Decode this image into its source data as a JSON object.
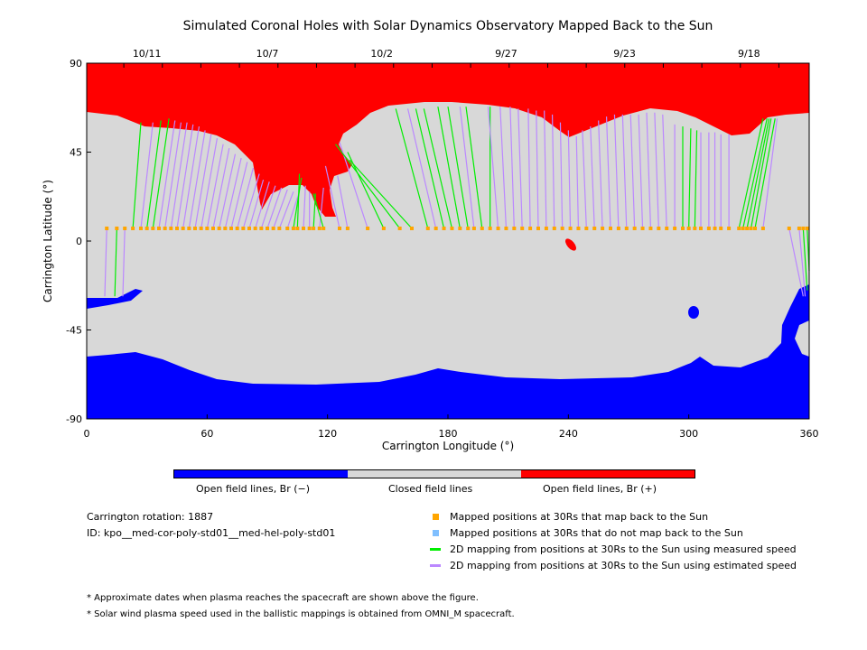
{
  "chart_data": {
    "type": "map",
    "title": "Simulated Coronal Holes with Solar Dynamics Observatory Mapped Back to the Sun",
    "xlabel": "Carrington Longitude (°)",
    "ylabel": "Carrington Latitude (°)",
    "xlim": [
      0,
      360
    ],
    "ylim": [
      -90,
      90
    ],
    "xticks": [
      "0",
      "60",
      "120",
      "180",
      "240",
      "300",
      "360"
    ],
    "yticks": [
      "90",
      "45",
      "0",
      "-45",
      "-90"
    ],
    "top_dates": [
      {
        "label": "10/11",
        "lon": 30
      },
      {
        "label": "10/7",
        "lon": 90
      },
      {
        "label": "10/2",
        "lon": 147
      },
      {
        "label": "9/27",
        "lon": 209
      },
      {
        "label": "9/23",
        "lon": 268
      },
      {
        "label": "9/18",
        "lon": 330
      }
    ],
    "mapping_lat_30rs": 6.4,
    "mappings_columns": [
      "lon_30Rs",
      "lon_sun",
      "lat_sun",
      "type"
    ],
    "mappings": [
      [
        10,
        9,
        -28,
        "e"
      ],
      [
        15,
        14,
        -28,
        "m"
      ],
      [
        19,
        18,
        -28,
        "e"
      ],
      [
        23,
        27,
        60,
        "m"
      ],
      [
        27,
        33,
        60,
        "e"
      ],
      [
        30,
        37,
        61,
        "m"
      ],
      [
        33,
        41,
        62,
        "m"
      ],
      [
        36,
        44,
        61,
        "e"
      ],
      [
        39,
        47,
        60,
        "e"
      ],
      [
        42,
        50,
        60,
        "e"
      ],
      [
        45,
        53,
        59,
        "e"
      ],
      [
        48,
        56,
        58,
        "e"
      ],
      [
        51,
        59,
        56,
        "e"
      ],
      [
        54,
        62,
        54,
        "e"
      ],
      [
        57,
        65,
        52,
        "e"
      ],
      [
        60,
        68,
        49,
        "e"
      ],
      [
        63,
        71,
        47,
        "e"
      ],
      [
        66,
        74,
        44,
        "e"
      ],
      [
        69,
        77,
        42,
        "e"
      ],
      [
        72,
        80,
        40,
        "e"
      ],
      [
        75,
        83,
        37,
        "e"
      ],
      [
        78,
        86,
        34,
        "e"
      ],
      [
        81,
        88,
        31,
        "e"
      ],
      [
        84,
        91,
        30,
        "e"
      ],
      [
        87,
        94,
        28,
        "e"
      ],
      [
        90,
        97,
        27,
        "e"
      ],
      [
        93,
        100,
        26,
        "e"
      ],
      [
        96,
        103,
        25,
        "e"
      ],
      [
        100,
        106,
        25,
        "e"
      ],
      [
        103,
        107,
        32,
        "m"
      ],
      [
        105,
        106,
        34,
        "m"
      ],
      [
        108,
        109,
        28,
        "e"
      ],
      [
        111,
        111,
        25,
        "e"
      ],
      [
        113,
        114,
        24,
        "m"
      ],
      [
        116,
        118,
        27,
        "e"
      ],
      [
        118,
        113,
        24,
        "m"
      ],
      [
        126,
        119,
        38,
        "e"
      ],
      [
        130,
        125,
        33,
        "e"
      ],
      [
        140,
        126,
        50,
        "e"
      ],
      [
        148,
        130,
        45,
        "m"
      ],
      [
        156,
        124,
        49,
        "m"
      ],
      [
        162,
        131,
        41,
        "m"
      ],
      [
        170,
        154,
        67,
        "m"
      ],
      [
        174,
        160,
        67,
        "e"
      ],
      [
        178,
        164,
        67,
        "m"
      ],
      [
        182,
        168,
        67,
        "m"
      ],
      [
        186,
        175,
        68,
        "m"
      ],
      [
        190,
        180,
        68,
        "m"
      ],
      [
        193,
        186,
        68,
        "e"
      ],
      [
        197,
        189,
        68,
        "m"
      ],
      [
        201,
        201,
        68,
        "m"
      ],
      [
        205,
        200,
        68,
        "e"
      ],
      [
        209,
        206,
        68,
        "e"
      ],
      [
        213,
        211,
        68,
        "e"
      ],
      [
        217,
        215,
        67,
        "e"
      ],
      [
        221,
        220,
        67,
        "e"
      ],
      [
        225,
        224,
        66,
        "e"
      ],
      [
        229,
        228,
        66,
        "e"
      ],
      [
        233,
        232,
        64,
        "e"
      ],
      [
        237,
        236,
        60,
        "e"
      ],
      [
        241,
        240,
        56,
        "e"
      ],
      [
        245,
        244,
        53,
        "e"
      ],
      [
        249,
        247,
        56,
        "e"
      ],
      [
        253,
        251,
        58,
        "e"
      ],
      [
        257,
        255,
        61,
        "e"
      ],
      [
        261,
        259,
        63,
        "e"
      ],
      [
        265,
        263,
        64,
        "e"
      ],
      [
        269,
        267,
        64,
        "e"
      ],
      [
        273,
        271,
        64,
        "e"
      ],
      [
        277,
        275,
        64,
        "e"
      ],
      [
        281,
        279,
        65,
        "e"
      ],
      [
        285,
        283,
        65,
        "e"
      ],
      [
        289,
        287,
        64,
        "e"
      ],
      [
        293,
        293,
        59,
        "e"
      ],
      [
        297,
        297,
        58,
        "m"
      ],
      [
        300,
        301,
        57,
        "m"
      ],
      [
        303,
        304,
        56,
        "m"
      ],
      [
        306,
        306,
        55,
        "e"
      ],
      [
        310,
        310,
        55,
        "e"
      ],
      [
        313,
        313,
        55,
        "e"
      ],
      [
        316,
        316,
        54,
        "e"
      ],
      [
        320,
        320,
        54,
        "e"
      ],
      [
        325,
        337,
        62,
        "m"
      ],
      [
        327,
        339,
        62,
        "m"
      ],
      [
        329,
        340,
        62,
        "m"
      ],
      [
        331,
        341,
        62,
        "m"
      ],
      [
        333,
        343,
        62,
        "m"
      ],
      [
        337,
        344,
        62,
        "e"
      ],
      [
        350,
        357,
        -28,
        "e"
      ],
      [
        355,
        358,
        -28,
        "e"
      ],
      [
        357,
        359,
        -25,
        "m"
      ],
      [
        359,
        360,
        -15,
        "m"
      ]
    ],
    "colors": {
      "neg": "#0000ff",
      "closed": "#d8d8d8",
      "pos": "#ff0000",
      "dot": "#ffa500",
      "dot_nomap": "#7fbfff",
      "measured": "#00ee00",
      "estimated": "#bb88ff"
    }
  },
  "colorbar": {
    "labels": [
      "Open field lines, Br (−)",
      "Closed field lines",
      "Open field lines, Br (+)"
    ]
  },
  "info": {
    "rotation": "Carrington rotation: 1887",
    "id": "ID: kpo__med-cor-poly-std01__med-hel-poly-std01"
  },
  "legend": [
    "Mapped positions at 30Rs that map back to the Sun",
    "Mapped positions at 30Rs that do not map back to the Sun",
    "2D mapping from positions at 30Rs to the Sun using measured speed",
    "2D mapping from positions at 30Rs to the Sun using estimated speed"
  ],
  "notes": [
    "* Approximate dates when plasma reaches the spacecraft are shown above the figure.",
    "* Solar wind plasma speed used in the ballistic mappings is obtained from OMNI_M spacecraft."
  ]
}
